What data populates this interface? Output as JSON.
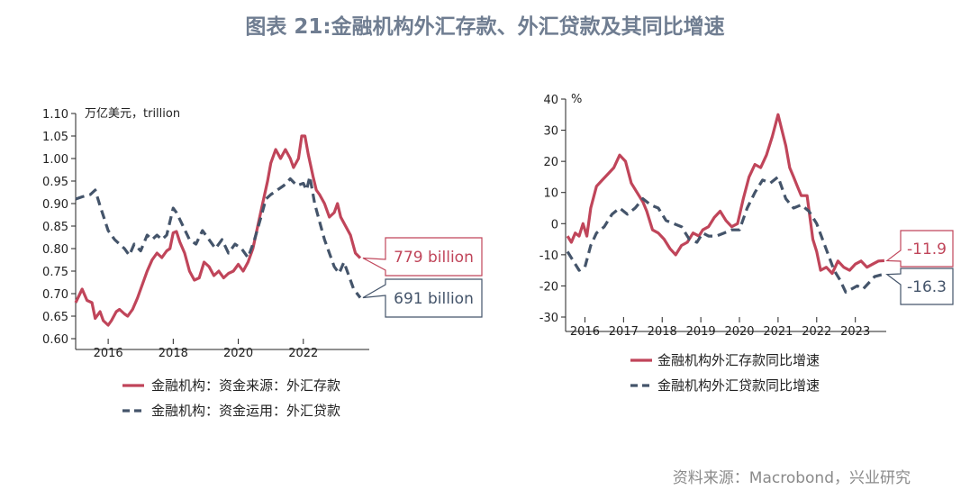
{
  "title": "图表 21:金融机构外汇存款、外汇贷款及其同比增速",
  "source": "资料来源：Macrobond，兴业研究",
  "colors": {
    "deposit": "#c0455a",
    "loan": "#44546a",
    "title": "#6f7d91"
  },
  "chart_data": [
    {
      "type": "line",
      "unit_label": "万亿美元，trillion",
      "ylim": [
        0.6,
        1.1
      ],
      "yticks": [
        "0.60",
        "0.65",
        "0.70",
        "0.75",
        "0.80",
        "0.85",
        "0.90",
        "0.95",
        "1.00",
        "1.05",
        "1.10"
      ],
      "xlim": [
        2015.0,
        2024.0
      ],
      "xticks": [
        "2016",
        "2018",
        "2020",
        "2022"
      ],
      "series": [
        {
          "name": "金融机构：资金来源：外汇存款",
          "style": "solid",
          "x": [
            2015.0,
            2015.2,
            2015.35,
            2015.5,
            2015.6,
            2015.75,
            2015.85,
            2016.0,
            2016.1,
            2016.25,
            2016.35,
            2016.5,
            2016.6,
            2016.75,
            2016.9,
            2017.0,
            2017.2,
            2017.35,
            2017.5,
            2017.65,
            2017.8,
            2017.9,
            2018.0,
            2018.1,
            2018.2,
            2018.35,
            2018.5,
            2018.65,
            2018.8,
            2018.95,
            2019.1,
            2019.25,
            2019.4,
            2019.55,
            2019.7,
            2019.85,
            2020.0,
            2020.15,
            2020.3,
            2020.45,
            2020.6,
            2020.75,
            2020.9,
            2021.0,
            2021.15,
            2021.3,
            2021.45,
            2021.6,
            2021.7,
            2021.85,
            2021.95,
            2022.05,
            2022.15,
            2022.3,
            2022.4,
            2022.5,
            2022.65,
            2022.8,
            2022.95,
            2023.05,
            2023.15,
            2023.3,
            2023.45,
            2023.6,
            2023.75
          ],
          "values": [
            0.68,
            0.71,
            0.685,
            0.68,
            0.645,
            0.66,
            0.64,
            0.63,
            0.64,
            0.66,
            0.665,
            0.655,
            0.65,
            0.665,
            0.69,
            0.71,
            0.75,
            0.775,
            0.79,
            0.78,
            0.795,
            0.8,
            0.835,
            0.838,
            0.815,
            0.79,
            0.75,
            0.73,
            0.735,
            0.77,
            0.76,
            0.74,
            0.75,
            0.735,
            0.745,
            0.75,
            0.765,
            0.75,
            0.77,
            0.8,
            0.85,
            0.9,
            0.95,
            0.99,
            1.02,
            1.0,
            1.02,
            1.0,
            0.98,
            1.0,
            1.05,
            1.05,
            1.01,
            0.96,
            0.93,
            0.92,
            0.9,
            0.87,
            0.88,
            0.9,
            0.87,
            0.85,
            0.83,
            0.79,
            0.779
          ]
        },
        {
          "name": "金融机构：资金运用：外汇贷款",
          "style": "dashed",
          "x": [
            2015.0,
            2015.2,
            2015.45,
            2015.6,
            2015.75,
            2016.0,
            2016.2,
            2016.5,
            2016.65,
            2016.8,
            2017.0,
            2017.2,
            2017.35,
            2017.5,
            2017.65,
            2017.8,
            2018.0,
            2018.1,
            2018.3,
            2018.5,
            2018.7,
            2018.9,
            2019.1,
            2019.3,
            2019.5,
            2019.7,
            2019.9,
            2020.1,
            2020.3,
            2020.5,
            2020.7,
            2020.85,
            2021.0,
            2021.2,
            2021.4,
            2021.6,
            2021.8,
            2022.0,
            2022.1,
            2022.2,
            2022.35,
            2022.5,
            2022.65,
            2022.8,
            2022.95,
            2023.1,
            2023.25,
            2023.4,
            2023.55,
            2023.75
          ],
          "values": [
            0.91,
            0.915,
            0.92,
            0.93,
            0.895,
            0.84,
            0.82,
            0.8,
            0.785,
            0.81,
            0.795,
            0.83,
            0.82,
            0.83,
            0.82,
            0.83,
            0.89,
            0.88,
            0.85,
            0.82,
            0.81,
            0.84,
            0.82,
            0.8,
            0.82,
            0.79,
            0.81,
            0.8,
            0.78,
            0.82,
            0.87,
            0.91,
            0.92,
            0.93,
            0.94,
            0.955,
            0.94,
            0.945,
            0.93,
            0.96,
            0.9,
            0.86,
            0.82,
            0.79,
            0.76,
            0.745,
            0.77,
            0.74,
            0.71,
            0.691
          ]
        }
      ],
      "annotations": [
        {
          "text": "779 billion",
          "series": 0
        },
        {
          "text": "691 billion",
          "series": 1
        }
      ]
    },
    {
      "type": "line",
      "unit_label": "%",
      "ylim": [
        -30,
        40
      ],
      "yticks": [
        "-30",
        "-20",
        "-10",
        "0",
        "10",
        "20",
        "30",
        "40"
      ],
      "xlim": [
        2015.5,
        2023.8
      ],
      "xticks": [
        "2016",
        "2017",
        "2018",
        "2019",
        "2020",
        "2021",
        "2022",
        "2023"
      ],
      "series": [
        {
          "name": "金融机构外汇存款同比增速",
          "style": "solid",
          "x": [
            2015.55,
            2015.65,
            2015.75,
            2015.85,
            2015.95,
            2016.05,
            2016.15,
            2016.3,
            2016.45,
            2016.6,
            2016.75,
            2016.9,
            2017.05,
            2017.2,
            2017.35,
            2017.5,
            2017.6,
            2017.75,
            2017.9,
            2018.05,
            2018.2,
            2018.35,
            2018.5,
            2018.65,
            2018.8,
            2018.95,
            2019.05,
            2019.2,
            2019.35,
            2019.5,
            2019.65,
            2019.8,
            2019.95,
            2020.1,
            2020.25,
            2020.4,
            2020.55,
            2020.7,
            2020.85,
            2021.0,
            2021.1,
            2021.2,
            2021.3,
            2021.4,
            2021.5,
            2021.6,
            2021.75,
            2021.9,
            2022.0,
            2022.1,
            2022.25,
            2022.4,
            2022.55,
            2022.7,
            2022.85,
            2023.0,
            2023.15,
            2023.3,
            2023.45,
            2023.6,
            2023.75
          ],
          "values": [
            -4,
            -6,
            -3,
            -4,
            0,
            -4,
            5,
            12,
            14,
            16,
            18,
            22,
            20,
            13,
            10,
            7,
            4,
            -2,
            -3,
            -5,
            -8,
            -10,
            -7,
            -6,
            -3,
            -4,
            -2,
            -1,
            2,
            4,
            1,
            -1,
            0,
            8,
            15,
            19,
            18,
            22,
            28,
            35,
            30,
            25,
            18,
            15,
            12,
            9,
            9,
            -5,
            -9,
            -15,
            -14,
            -16,
            -12,
            -14,
            -15,
            -13,
            -12,
            -14,
            -13,
            -12,
            -11.9
          ]
        },
        {
          "name": "金融机构外汇贷款同比增速",
          "style": "dashed",
          "x": [
            2015.55,
            2015.7,
            2015.85,
            2016.0,
            2016.15,
            2016.3,
            2016.5,
            2016.7,
            2016.9,
            2017.1,
            2017.3,
            2017.5,
            2017.7,
            2017.9,
            2018.1,
            2018.3,
            2018.5,
            2018.7,
            2018.9,
            2019.05,
            2019.2,
            2019.4,
            2019.6,
            2019.8,
            2020.0,
            2020.2,
            2020.4,
            2020.6,
            2020.8,
            2021.0,
            2021.2,
            2021.4,
            2021.6,
            2021.8,
            2022.0,
            2022.15,
            2022.3,
            2022.45,
            2022.6,
            2022.75,
            2022.9,
            2023.05,
            2023.2,
            2023.35,
            2023.5,
            2023.65,
            2023.75
          ],
          "values": [
            -9,
            -12,
            -15,
            -14,
            -7,
            -3,
            -1,
            3,
            5,
            3,
            5,
            8,
            6,
            5,
            1,
            0,
            -1,
            -5,
            -6,
            -3,
            -4,
            -4,
            -3,
            -2,
            -2,
            5,
            10,
            14,
            13,
            15,
            8,
            5,
            6,
            4,
            0,
            -5,
            -10,
            -15,
            -18,
            -22,
            -21,
            -20,
            -21,
            -19,
            -17,
            -16.5,
            -16.3
          ]
        }
      ],
      "annotations": [
        {
          "text": "-11.9",
          "series": 0
        },
        {
          "text": "-16.3",
          "series": 1
        }
      ]
    }
  ]
}
